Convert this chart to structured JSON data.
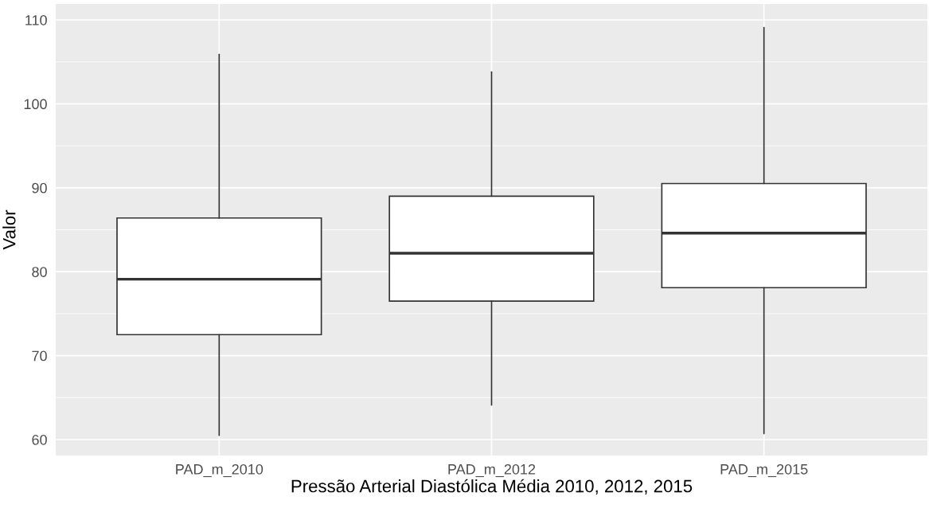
{
  "chart_data": {
    "type": "box",
    "xlabel": "Pressão Arterial Diastólica Média 2010, 2012, 2015",
    "ylabel": "Valor",
    "categories": [
      "PAD_m_2010",
      "PAD_m_2012",
      "PAD_m_2015"
    ],
    "boxes": [
      {
        "low": 60.5,
        "q1": 72.5,
        "median": 79.1,
        "q3": 86.4,
        "high": 105.9
      },
      {
        "low": 64.1,
        "q1": 76.5,
        "median": 82.2,
        "q3": 89.0,
        "high": 103.8
      },
      {
        "low": 60.7,
        "q1": 78.1,
        "median": 84.6,
        "q3": 90.5,
        "high": 109.1
      }
    ],
    "ylim": [
      58.1,
      111.9
    ],
    "yticks": [
      60,
      70,
      80,
      90,
      100,
      110
    ],
    "grid": true
  }
}
